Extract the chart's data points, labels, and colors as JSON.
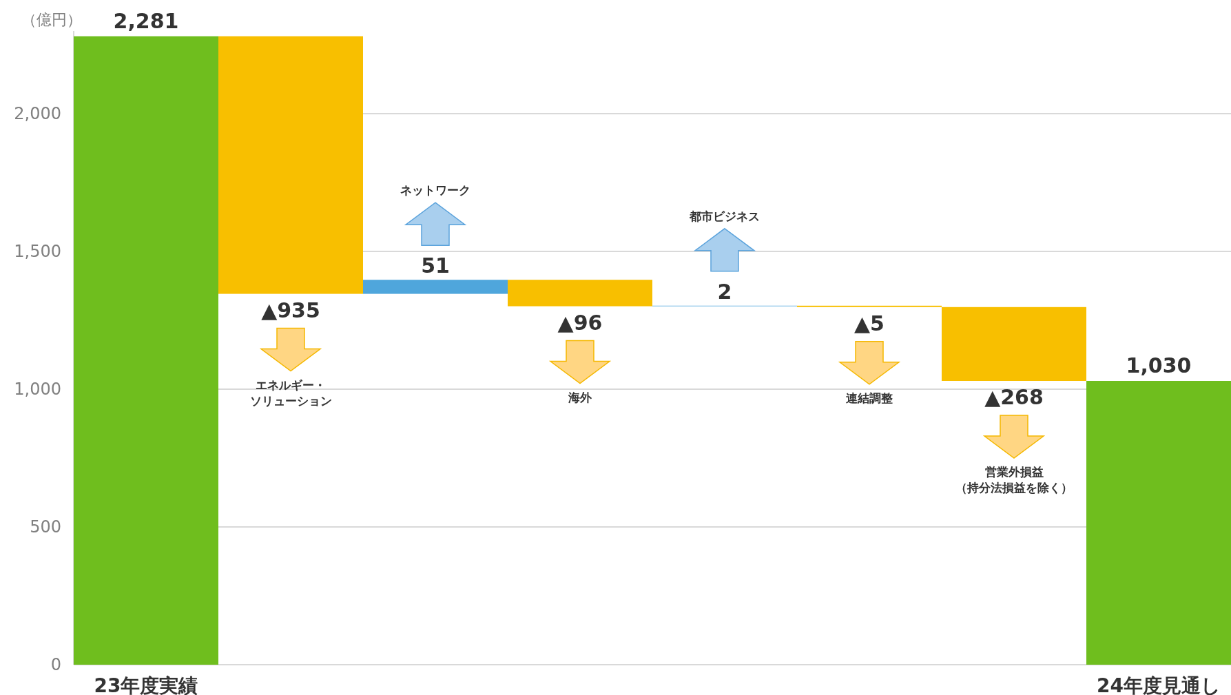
{
  "chart_data": {
    "type": "bar",
    "ylabel": "（億円）",
    "categories": [
      "23年度実績",
      "エネルギー・ソリューション",
      "ネットワーク",
      "海外",
      "都市ビジネス",
      "連結調整",
      "営業外損益（持分法損益を除く）",
      "24年度見通し"
    ],
    "values": [
      2281,
      -935,
      51,
      -96,
      2,
      -5,
      -268,
      1030
    ],
    "base": [
      0,
      2281,
      1346,
      1397,
      1301,
      1303,
      1298,
      0
    ],
    "colors": [
      "#6fbe1e",
      "#f8bf00",
      "#4fa6dc",
      "#f8bf00",
      "#4fa6dc",
      "#f8bf00",
      "#f8bf00",
      "#6fbe1e"
    ],
    "value_labels": [
      "2,281",
      "▲935",
      "51",
      "▲96",
      "2",
      "▲5",
      "▲268",
      "1,030"
    ],
    "ylim": [
      0,
      2300
    ],
    "yticks": [
      0,
      {
        "value": 500,
        "label": "500"
      },
      {
        "value": 1000,
        "label": "1,000"
      },
      {
        "value": 1500,
        "label": "1,500"
      },
      {
        "value": 2000,
        "label": "2,000"
      }
    ],
    "grid": "y"
  }
}
